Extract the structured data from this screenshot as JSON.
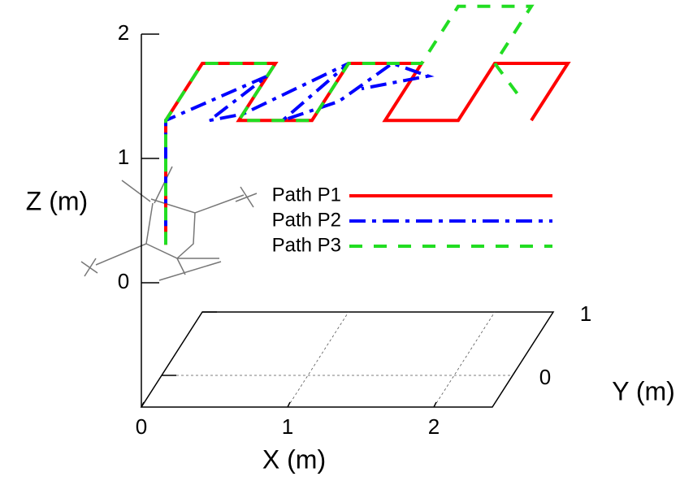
{
  "chart_data": {
    "type": "line3d",
    "xlabel": "X (m)",
    "ylabel": "Y (m)",
    "zlabel": "Z (m)",
    "xlim": [
      0,
      2.4
    ],
    "ylim": [
      -0.5,
      1
    ],
    "zlim": [
      -1,
      2
    ],
    "xticks": [
      0,
      1,
      2
    ],
    "yticks": [
      0,
      1
    ],
    "zticks": [
      0,
      1,
      2
    ],
    "grid": true,
    "legend": "right",
    "series": [
      {
        "name": "Path P1",
        "color": "#ff0000",
        "x": [
          0,
          0,
          0,
          0.5,
          0.5,
          1,
          1,
          1.5,
          1.5,
          2,
          2,
          2.5,
          2.5
        ],
        "y": [
          0.1,
          0.1,
          1,
          1,
          0.1,
          0.1,
          1,
          1,
          0.1,
          0.1,
          1,
          1,
          0.1
        ],
        "z": [
          0,
          1,
          1,
          1,
          1,
          1,
          1,
          1,
          1,
          1,
          1,
          1,
          1
        ]
      },
      {
        "name": "Path P2",
        "color": "#0000ff",
        "x": [
          0,
          0,
          0.5,
          0.3,
          0.5,
          1,
          0.8,
          1.1,
          1.3,
          1.6,
          1.2
        ],
        "y": [
          0.1,
          0.1,
          0.8,
          0.1,
          0.2,
          1,
          0.1,
          0.4,
          1,
          0.8,
          0.6
        ],
        "z": [
          0.15,
          1,
          1,
          1,
          1,
          1,
          1,
          1,
          1,
          1,
          1
        ]
      },
      {
        "name": "Path P3",
        "color": "#22dd22",
        "x": [
          0,
          0,
          0,
          0.5,
          0.5,
          1,
          1,
          1.5,
          1.5,
          2,
          2,
          2.3
        ],
        "y": [
          0.1,
          0.1,
          1,
          1,
          0.1,
          0.1,
          1,
          1,
          1.9,
          1.9,
          1,
          0.5
        ],
        "z": [
          0,
          1,
          1,
          1,
          1,
          1,
          1,
          1,
          1,
          1,
          1,
          1
        ]
      }
    ]
  }
}
